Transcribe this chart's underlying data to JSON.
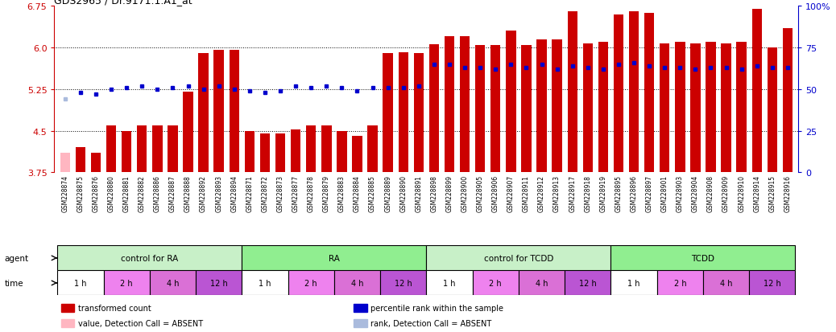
{
  "title": "GDS2965 / Dr.9171.1.A1_at",
  "ylim_left": [
    3.75,
    6.75
  ],
  "ylim_right": [
    0,
    100
  ],
  "yticks_left": [
    3.75,
    4.5,
    5.25,
    6.0,
    6.75
  ],
  "yticks_right": [
    0,
    25,
    50,
    75,
    100
  ],
  "samples": [
    "GSM228874",
    "GSM228875",
    "GSM228876",
    "GSM228880",
    "GSM228881",
    "GSM228882",
    "GSM228886",
    "GSM228887",
    "GSM228888",
    "GSM228892",
    "GSM228893",
    "GSM228894",
    "GSM228871",
    "GSM228872",
    "GSM228873",
    "GSM228877",
    "GSM228878",
    "GSM228879",
    "GSM228883",
    "GSM228884",
    "GSM228885",
    "GSM228889",
    "GSM228890",
    "GSM228891",
    "GSM228898",
    "GSM228899",
    "GSM228900",
    "GSM228905",
    "GSM228906",
    "GSM228907",
    "GSM228911",
    "GSM228912",
    "GSM228913",
    "GSM228917",
    "GSM228918",
    "GSM228919",
    "GSM228895",
    "GSM228896",
    "GSM228897",
    "GSM228901",
    "GSM228903",
    "GSM228904",
    "GSM228908",
    "GSM228909",
    "GSM228910",
    "GSM228914",
    "GSM228915",
    "GSM228916"
  ],
  "bar_values": [
    4.1,
    4.2,
    4.1,
    4.6,
    4.5,
    4.6,
    4.6,
    4.6,
    5.2,
    5.9,
    5.95,
    5.95,
    4.5,
    4.45,
    4.45,
    4.52,
    4.6,
    4.6,
    4.5,
    4.4,
    4.6,
    5.9,
    5.92,
    5.9,
    6.06,
    6.2,
    6.2,
    6.04,
    6.04,
    6.3,
    6.04,
    6.15,
    6.15,
    6.65,
    6.08,
    6.1,
    6.6,
    6.65,
    6.62,
    6.08,
    6.1,
    6.08,
    6.1,
    6.08,
    6.1,
    6.7,
    6.0,
    6.35
  ],
  "rank_values_pct": [
    44,
    48,
    47,
    50,
    51,
    52,
    50,
    51,
    52,
    50,
    52,
    50,
    49,
    48,
    49,
    52,
    51,
    52,
    51,
    49,
    51,
    51,
    51,
    52,
    65,
    65,
    63,
    63,
    62,
    65,
    63,
    65,
    62,
    64,
    63,
    62,
    65,
    66,
    64,
    63,
    63,
    62,
    63,
    63,
    62,
    64,
    63,
    63
  ],
  "bar_absent": [
    true,
    false,
    false,
    false,
    false,
    false,
    false,
    false,
    false,
    false,
    false,
    false,
    false,
    false,
    false,
    false,
    false,
    false,
    false,
    false,
    false,
    false,
    false,
    false,
    false,
    false,
    false,
    false,
    false,
    false,
    false,
    false,
    false,
    false,
    false,
    false,
    false,
    false,
    false,
    false,
    false,
    false,
    false,
    false,
    false,
    false,
    false,
    false
  ],
  "rank_absent": [
    true,
    false,
    false,
    false,
    false,
    false,
    false,
    false,
    false,
    false,
    false,
    false,
    false,
    false,
    false,
    false,
    false,
    false,
    false,
    false,
    false,
    false,
    false,
    false,
    false,
    false,
    false,
    false,
    false,
    false,
    false,
    false,
    false,
    false,
    false,
    false,
    false,
    false,
    false,
    false,
    false,
    false,
    false,
    false,
    false,
    false,
    false,
    false
  ],
  "agent_groups": [
    {
      "label": "control for RA",
      "start": 0,
      "end": 12,
      "color": "#C8F0C8"
    },
    {
      "label": "RA",
      "start": 12,
      "end": 24,
      "color": "#90EE90"
    },
    {
      "label": "control for TCDD",
      "start": 24,
      "end": 36,
      "color": "#C8F0C8"
    },
    {
      "label": "TCDD",
      "start": 36,
      "end": 48,
      "color": "#90EE90"
    }
  ],
  "time_groups": [
    {
      "label": "1 h",
      "start": 0,
      "end": 3
    },
    {
      "label": "2 h",
      "start": 3,
      "end": 6
    },
    {
      "label": "4 h",
      "start": 6,
      "end": 9
    },
    {
      "label": "12 h",
      "start": 9,
      "end": 12
    },
    {
      "label": "1 h",
      "start": 12,
      "end": 15
    },
    {
      "label": "2 h",
      "start": 15,
      "end": 18
    },
    {
      "label": "4 h",
      "start": 18,
      "end": 21
    },
    {
      "label": "12 h",
      "start": 21,
      "end": 24
    },
    {
      "label": "1 h",
      "start": 24,
      "end": 27
    },
    {
      "label": "2 h",
      "start": 27,
      "end": 30
    },
    {
      "label": "4 h",
      "start": 30,
      "end": 33
    },
    {
      "label": "12 h",
      "start": 33,
      "end": 36
    },
    {
      "label": "1 h",
      "start": 36,
      "end": 39
    },
    {
      "label": "2 h",
      "start": 39,
      "end": 42
    },
    {
      "label": "4 h",
      "start": 42,
      "end": 45
    },
    {
      "label": "12 h",
      "start": 45,
      "end": 48
    }
  ],
  "time_colors": {
    "1 h": "#ffffff",
    "2 h": "#EE82EE",
    "4 h": "#DA70D6",
    "12 h": "#BA55D3"
  },
  "bar_color": "#CC0000",
  "bar_absent_color": "#FFB6C1",
  "rank_color": "#0000CC",
  "rank_absent_color": "#AABBDD",
  "background_color": "#ffffff",
  "tick_label_bg": "#D8D8D8",
  "bar_width": 0.65,
  "dotted_lines": [
    4.5,
    5.25,
    6.0
  ],
  "legend_items": [
    {
      "color": "#CC0000",
      "label": "transformed count"
    },
    {
      "color": "#0000CC",
      "label": "percentile rank within the sample"
    },
    {
      "color": "#FFB6C1",
      "label": "value, Detection Call = ABSENT"
    },
    {
      "color": "#AABBDD",
      "label": "rank, Detection Call = ABSENT"
    }
  ]
}
